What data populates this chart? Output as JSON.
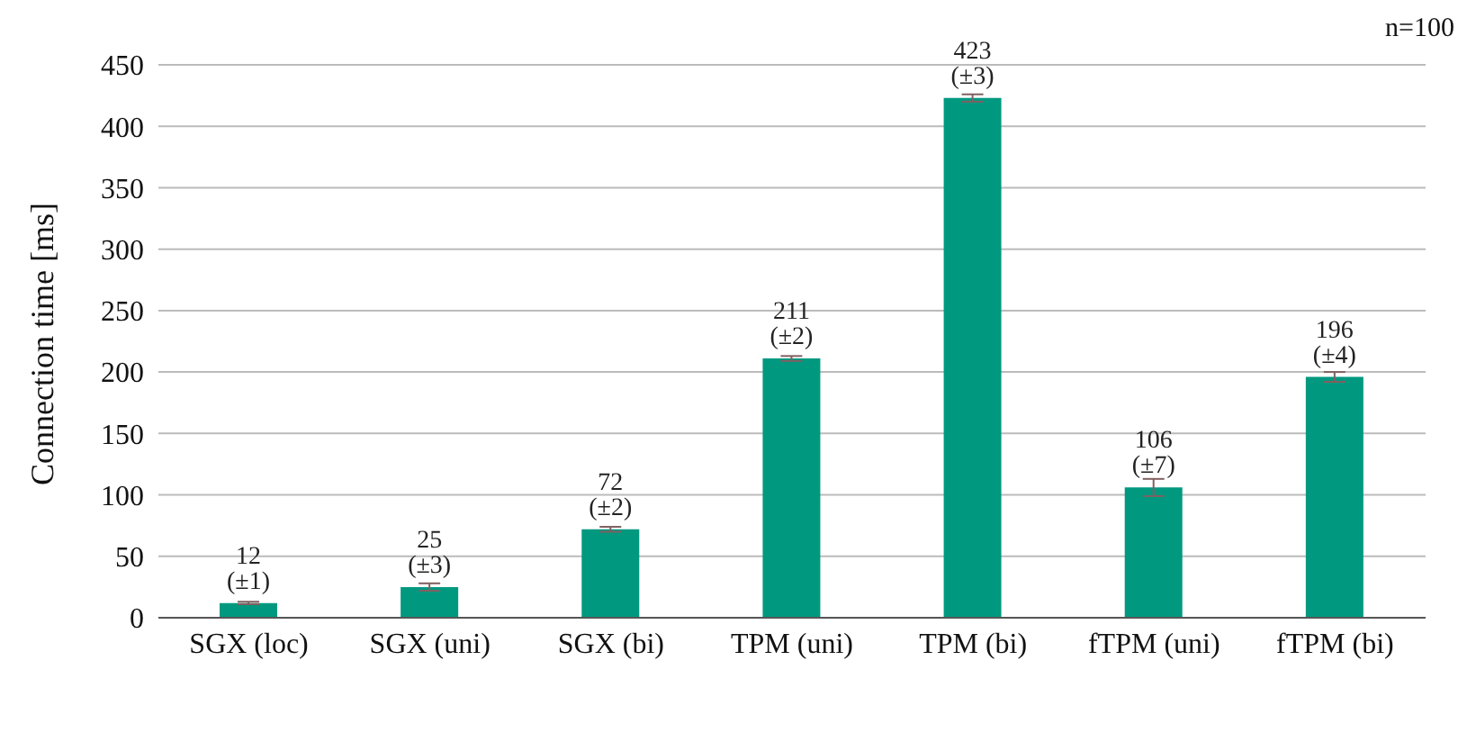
{
  "chart_data": {
    "type": "bar",
    "ylabel": "Connection time [ms]",
    "annotations": [
      "n=100"
    ],
    "categories": [
      "SGX (loc)",
      "SGX (uni)",
      "SGX (bi)",
      "TPM (uni)",
      "TPM (bi)",
      "fTPM (uni)",
      "fTPM (bi)"
    ],
    "values": [
      12,
      25,
      72,
      211,
      423,
      106,
      196
    ],
    "errors": [
      1,
      3,
      2,
      2,
      3,
      7,
      4
    ],
    "value_labels": [
      "12 (±1)",
      "25 (±3)",
      "72 (±2)",
      "211 (±2)",
      "423 (±3)",
      "106 (±7)",
      "196 (±4)"
    ],
    "color": "#009980",
    "ylim": [
      0,
      450
    ],
    "yticks": [
      0,
      50,
      100,
      150,
      200,
      250,
      300,
      350,
      400,
      450
    ],
    "grid": "y"
  }
}
